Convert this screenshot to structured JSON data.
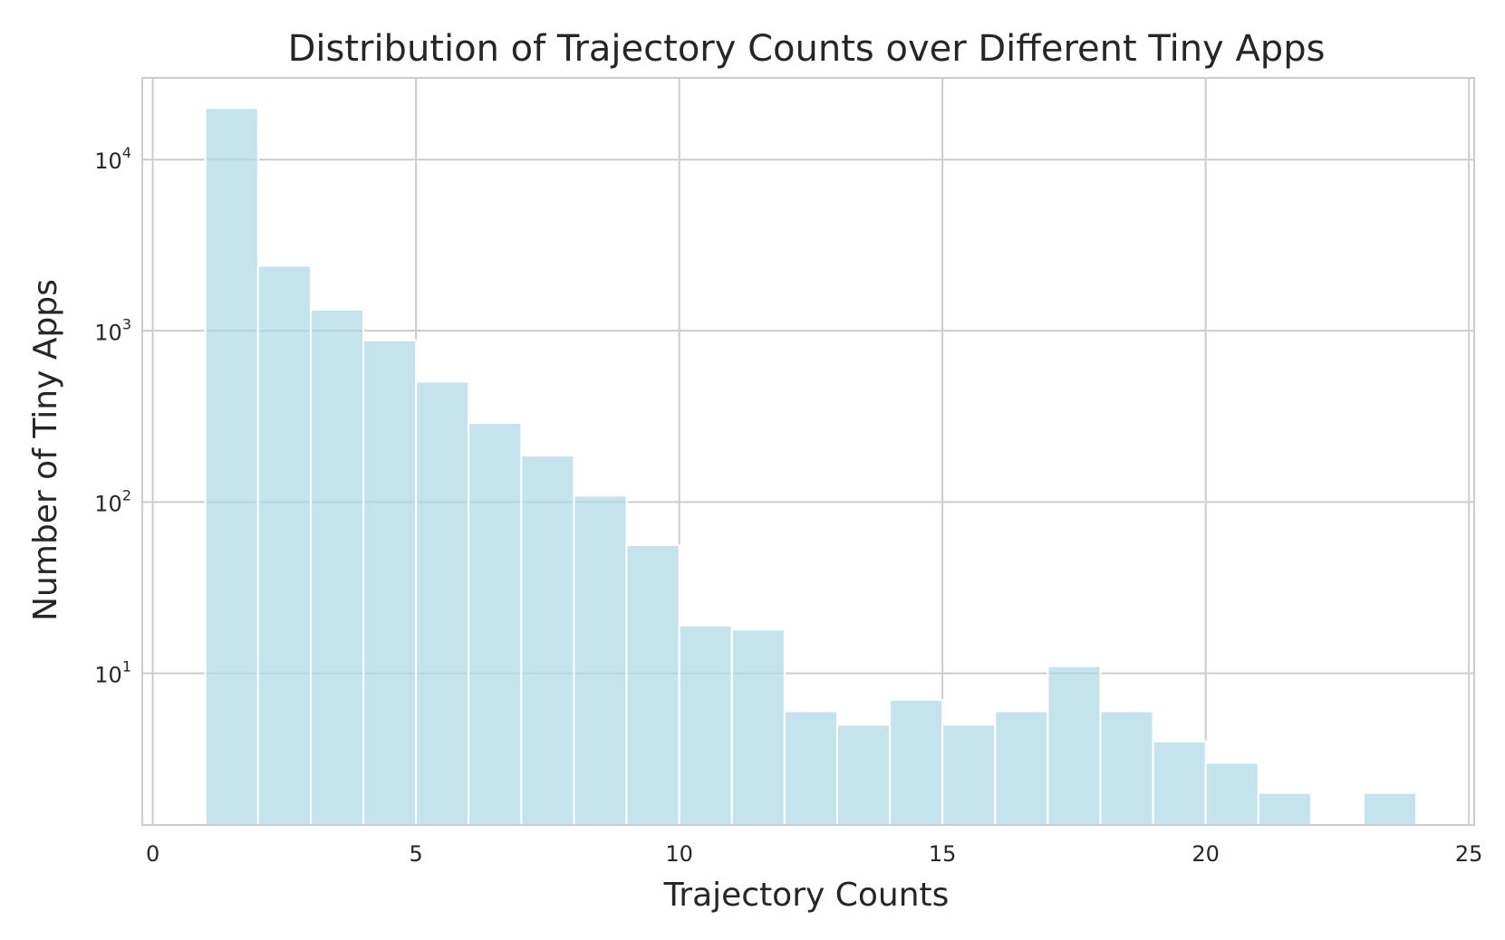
{
  "chart_data": {
    "type": "bar",
    "title": "Distribution of Trajectory Counts over Different Tiny Apps",
    "xlabel": "Trajectory Counts",
    "ylabel": "Number of Tiny Apps",
    "xlim": [
      -0.2,
      25.1
    ],
    "ylim": [
      1.3,
      30000
    ],
    "yscale": "log",
    "grid": true,
    "bar_color": "#add8e6",
    "x_ticks": [
      {
        "value": 0,
        "label": "0"
      },
      {
        "value": 5,
        "label": "5"
      },
      {
        "value": 10,
        "label": "10"
      },
      {
        "value": 15,
        "label": "15"
      },
      {
        "value": 20,
        "label": "20"
      },
      {
        "value": 25,
        "label": "25"
      }
    ],
    "y_ticks": [
      {
        "value": 10,
        "base": "10",
        "exp": "1"
      },
      {
        "value": 100,
        "base": "10",
        "exp": "2"
      },
      {
        "value": 1000,
        "base": "10",
        "exp": "3"
      },
      {
        "value": 10000,
        "base": "10",
        "exp": "4"
      }
    ],
    "bins": [
      {
        "start": 1,
        "end": 2,
        "value": 20000
      },
      {
        "start": 2,
        "end": 3,
        "value": 2400
      },
      {
        "start": 3,
        "end": 4,
        "value": 1330
      },
      {
        "start": 4,
        "end": 5,
        "value": 880
      },
      {
        "start": 5,
        "end": 6,
        "value": 505
      },
      {
        "start": 6,
        "end": 7,
        "value": 290
      },
      {
        "start": 7,
        "end": 8,
        "value": 187
      },
      {
        "start": 8,
        "end": 9,
        "value": 109
      },
      {
        "start": 9,
        "end": 10,
        "value": 56
      },
      {
        "start": 10,
        "end": 11,
        "value": 19
      },
      {
        "start": 11,
        "end": 12,
        "value": 18
      },
      {
        "start": 12,
        "end": 13,
        "value": 6
      },
      {
        "start": 13,
        "end": 14,
        "value": 5
      },
      {
        "start": 14,
        "end": 15,
        "value": 7
      },
      {
        "start": 15,
        "end": 16,
        "value": 5
      },
      {
        "start": 16,
        "end": 17,
        "value": 6
      },
      {
        "start": 17,
        "end": 18,
        "value": 11
      },
      {
        "start": 18,
        "end": 19,
        "value": 6
      },
      {
        "start": 19,
        "end": 20,
        "value": 4
      },
      {
        "start": 20,
        "end": 21,
        "value": 3
      },
      {
        "start": 21,
        "end": 22,
        "value": 2
      },
      {
        "start": 23,
        "end": 24,
        "value": 2
      }
    ]
  }
}
